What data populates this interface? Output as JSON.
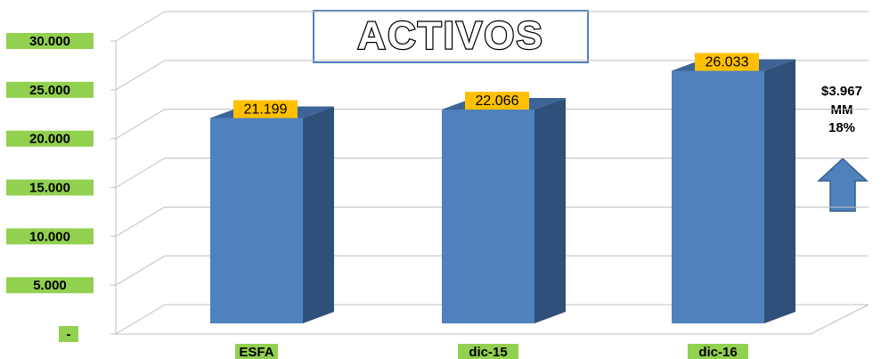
{
  "chart_data": {
    "type": "bar",
    "title": "ACTIVOS",
    "categories": [
      "ESFA",
      "dic-15",
      "dic-16"
    ],
    "values": [
      21199,
      22066,
      26033
    ],
    "value_labels": [
      "21.199",
      "22.066",
      "26.033"
    ],
    "color": "#4f81bd",
    "ylim": [
      0,
      30000
    ],
    "yticks": [
      {
        "value": 0,
        "label": "-"
      },
      {
        "value": 5000,
        "label": "5.000"
      },
      {
        "value": 10000,
        "label": "10.000"
      },
      {
        "value": 15000,
        "label": "15.000"
      },
      {
        "value": 20000,
        "label": "20.000"
      },
      {
        "value": 25000,
        "label": "25.000"
      },
      {
        "value": 30000,
        "label": "30.000"
      }
    ],
    "grid": true,
    "annotations": [
      "$3.967",
      "MM",
      "18%"
    ]
  }
}
